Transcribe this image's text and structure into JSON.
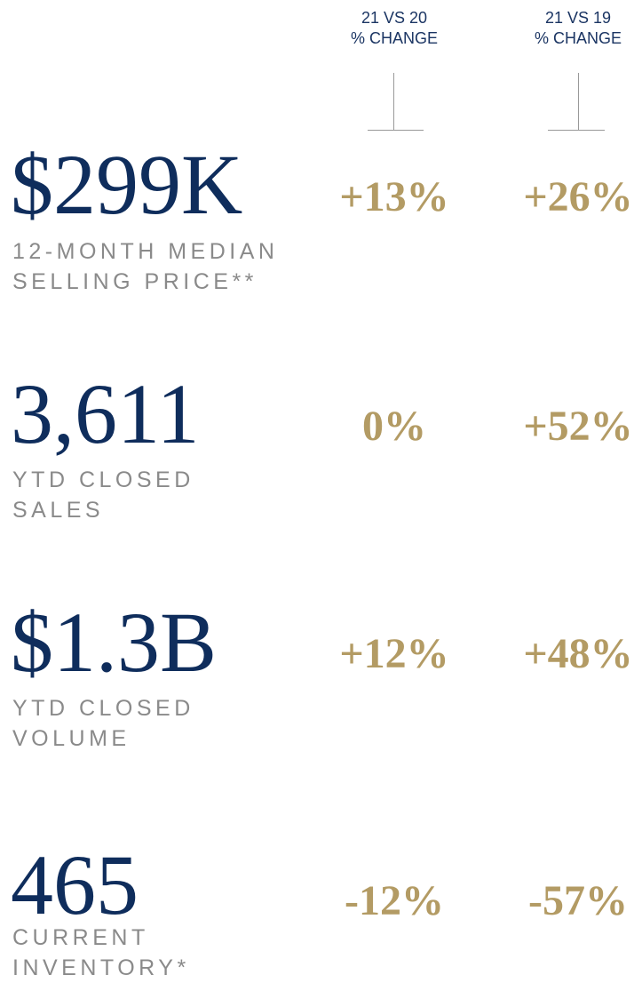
{
  "columns": [
    {
      "lines": [
        "21 VS 20",
        "% CHANGE"
      ]
    },
    {
      "lines": [
        "21 VS 19",
        "% CHANGE"
      ]
    }
  ],
  "rows": [
    {
      "value": "$299K",
      "label": [
        "12-MONTH MEDIAN",
        "SELLING PRICE**"
      ],
      "changes": [
        "+13%",
        "+26%"
      ]
    },
    {
      "value": "3,611",
      "label": [
        "YTD CLOSED",
        "SALES"
      ],
      "changes": [
        "0%",
        "+52%"
      ]
    },
    {
      "value": "$1.3B",
      "label": [
        "YTD CLOSED",
        "VOLUME"
      ],
      "changes": [
        "+12%",
        "+48%"
      ]
    },
    {
      "value": "465",
      "label": [
        "CURRENT",
        "INVENTORY*"
      ],
      "changes": [
        "-12%",
        "-57%"
      ]
    }
  ]
}
